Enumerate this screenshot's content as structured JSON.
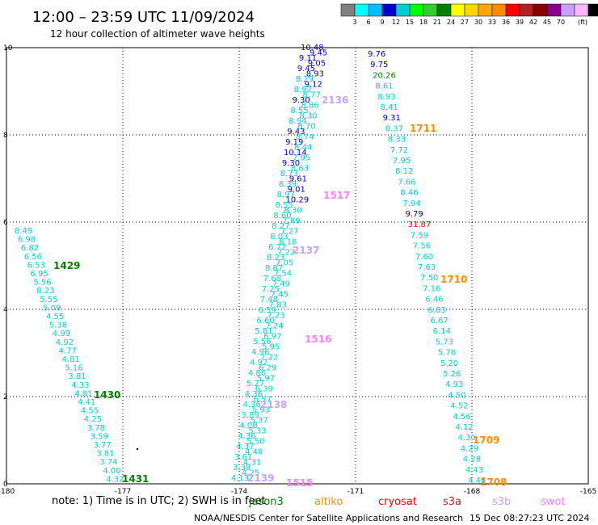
{
  "chart_data": {
    "type": "scatter",
    "title": "12:00 – 23:59 UTC 11/09/2024",
    "subtitle": "12 hour collection of altimeter wave heights",
    "x_ticks": [
      "-180",
      "-177",
      "-174",
      "-171",
      "-168",
      "-165"
    ],
    "y_ticks": [
      "0",
      "2",
      "4",
      "6",
      "8",
      "10"
    ],
    "xlim": [
      -180,
      -165
    ],
    "ylim": [
      0,
      10
    ],
    "grid": true,
    "colorbar": {
      "unit_label": "(ft)",
      "labels": [
        "3",
        "6",
        "9",
        "12",
        "15",
        "18",
        "21",
        "24",
        "27",
        "30",
        "33",
        "36",
        "39",
        "42",
        "45",
        "70"
      ],
      "colors": [
        "#808080",
        "#00ffff",
        "#00bfff",
        "#0000cd",
        "#00ced1",
        "#00ff00",
        "#32cd32",
        "#008000",
        "#ffff00",
        "#ffd700",
        "#ffa500",
        "#ff8c00",
        "#ff0000",
        "#b22222",
        "#8b0000",
        "#8b008b",
        "#c8a0ff",
        "#ffb6ff",
        "#000000"
      ]
    },
    "series": [
      {
        "color": "#00cfd8",
        "points": [
          {
            "x": -179.8,
            "y": 9.4,
            "label": "8.49"
          },
          {
            "x": -179.7,
            "y": 9.2,
            "label": "6.98"
          },
          {
            "x": -179.6,
            "y": 9.0,
            "label": "6.82"
          },
          {
            "x": -179.5,
            "y": 8.8,
            "label": "6.56"
          },
          {
            "x": -179.4,
            "y": 8.6,
            "label": "6.53"
          },
          {
            "x": -179.3,
            "y": 8.45,
            "label": "6.95"
          },
          {
            "x": -179.2,
            "y": 8.25,
            "label": "5.56"
          },
          {
            "x": -179.1,
            "y": 8.05,
            "label": "8.23"
          },
          {
            "x": -179.0,
            "y": 7.85,
            "label": "5.55"
          },
          {
            "x": -178.9,
            "y": 7.65,
            "label": "5.09"
          },
          {
            "x": -178.8,
            "y": 7.45,
            "label": "4.55"
          },
          {
            "x": -178.7,
            "y": 7.25,
            "label": "5.38"
          },
          {
            "x": -178.6,
            "y": 7.05,
            "label": "4.99"
          },
          {
            "x": -178.5,
            "y": 6.85,
            "label": "4.92"
          },
          {
            "x": -178.4,
            "y": 6.65,
            "label": "4.77"
          },
          {
            "x": -178.3,
            "y": 6.45,
            "label": "4.81"
          },
          {
            "x": -178.2,
            "y": 6.25,
            "label": "5.16"
          },
          {
            "x": -178.1,
            "y": 6.05,
            "label": "3.81"
          },
          {
            "x": -178.0,
            "y": 5.85,
            "label": "4.33"
          },
          {
            "x": -177.9,
            "y": 5.65,
            "label": "4.81"
          },
          {
            "x": -177.8,
            "y": 5.5,
            "label": "4.41"
          },
          {
            "x": -177.7,
            "y": 5.3,
            "label": "4.55"
          },
          {
            "x": -177.6,
            "y": 5.1,
            "label": "4.25"
          },
          {
            "x": -177.5,
            "y": 4.9,
            "label": "3.78"
          },
          {
            "x": -177.4,
            "y": 4.7,
            "label": "3.59"
          },
          {
            "x": -177.3,
            "y": 4.5,
            "label": "3.77"
          },
          {
            "x": -177.2,
            "y": 4.3,
            "label": "3.81"
          },
          {
            "x": -177.1,
            "y": 4.1,
            "label": "3.74"
          },
          {
            "x": -177.0,
            "y": 3.9,
            "label": "4.00"
          },
          {
            "x": -176.9,
            "y": 3.7,
            "label": "4.32"
          }
        ]
      }
    ],
    "annotations": [
      {
        "x": -177.3,
        "y": 8.5,
        "text": "1429",
        "color": "#008000"
      },
      {
        "x": -176.5,
        "y": 5.5,
        "text": "1430",
        "color": "#008000"
      },
      {
        "x": -176.0,
        "y": 3.7,
        "text": "1431",
        "color": "#008000"
      },
      {
        "x": -173.0,
        "y": 9.8,
        "text": "2136",
        "color": "#c8a0ff"
      },
      {
        "x": -173.0,
        "y": 9.4,
        "text": "1517",
        "color": "#ff80ff"
      },
      {
        "x": -173.3,
        "y": 8.9,
        "text": "2137",
        "color": "#c8a0ff"
      },
      {
        "x": -172.0,
        "y": 9.9,
        "text": "1711",
        "color": "#ff8c00"
      },
      {
        "x": -172.0,
        "y": 9.0,
        "text": "1710",
        "color": "#ff8c00"
      },
      {
        "x": -172.5,
        "y": 8.5,
        "text": "1516",
        "color": "#ff80ff"
      },
      {
        "x": -173.5,
        "y": 5.5,
        "text": "2138",
        "color": "#c8a0ff"
      },
      {
        "x": -172.2,
        "y": 5.0,
        "text": "1709",
        "color": "#ff8c00"
      },
      {
        "x": -172.2,
        "y": 3.7,
        "text": "1708",
        "color": "#ff8c00"
      },
      {
        "x": -173.2,
        "y": 3.7,
        "text": "1515",
        "color": "#ff80ff"
      },
      {
        "x": -173.8,
        "y": 3.7,
        "text": "2139",
        "color": "#c8a0ff"
      }
    ]
  },
  "col_a": [
    {
      "t": "10.48",
      "c": "#0000cd"
    },
    {
      "t": "9.45",
      "c": "#0000cd"
    },
    {
      "t": "9.11",
      "c": "#0000cd"
    },
    {
      "t": "9.05",
      "c": "#0000cd"
    },
    {
      "t": "9.45",
      "c": "#0000cd"
    },
    {
      "t": "8.93",
      "c": "#0000cd"
    },
    {
      "t": "8.29",
      "c": "#00cfd8"
    },
    {
      "t": "9.12",
      "c": "#0000cd"
    },
    {
      "t": "8.92",
      "c": "#00cfd8"
    },
    {
      "t": "8.77",
      "c": "#00cfd8"
    },
    {
      "t": "9.30",
      "c": "#0000cd"
    },
    {
      "t": "8.86",
      "c": "#00cfd8"
    },
    {
      "t": "8.55",
      "c": "#00cfd8"
    },
    {
      "t": "8.30",
      "c": "#00cfd8"
    },
    {
      "t": "8.94",
      "c": "#00cfd8"
    },
    {
      "t": "8.70",
      "c": "#00cfd8"
    },
    {
      "t": "9.43",
      "c": "#0000cd"
    },
    {
      "t": "8.74",
      "c": "#00cfd8"
    },
    {
      "t": "9.19",
      "c": "#0000cd"
    },
    {
      "t": "8.44",
      "c": "#00cfd8"
    },
    {
      "t": "10.14",
      "c": "#0000cd"
    },
    {
      "t": "7.95",
      "c": "#00cfd8"
    },
    {
      "t": "9.30",
      "c": "#0000cd"
    },
    {
      "t": "8.63",
      "c": "#00cfd8"
    },
    {
      "t": "8.73",
      "c": "#00cfd8"
    },
    {
      "t": "9.61",
      "c": "#0000cd"
    },
    {
      "t": "8.39",
      "c": "#00cfd8"
    },
    {
      "t": "9.01",
      "c": "#0000cd"
    },
    {
      "t": "8.97",
      "c": "#00cfd8"
    },
    {
      "t": "10.29",
      "c": "#0000cd"
    },
    {
      "t": "8.55",
      "c": "#00cfd8"
    },
    {
      "t": "8.30",
      "c": "#00cfd8"
    },
    {
      "t": "8.60",
      "c": "#00cfd8"
    },
    {
      "t": "7.89",
      "c": "#00cfd8"
    },
    {
      "t": "8.27",
      "c": "#00cfd8"
    },
    {
      "t": "7.27",
      "c": "#00cfd8"
    },
    {
      "t": "8.03",
      "c": "#00cfd8"
    },
    {
      "t": "8.18",
      "c": "#00cfd8"
    },
    {
      "t": "6.72",
      "c": "#00cfd8"
    },
    {
      "t": "7.22",
      "c": "#00cfd8"
    },
    {
      "t": "8.23",
      "c": "#00cfd8"
    },
    {
      "t": "7.05",
      "c": "#00cfd8"
    },
    {
      "t": "8.87",
      "c": "#00cfd8"
    },
    {
      "t": "7.54",
      "c": "#00cfd8"
    },
    {
      "t": "7.68",
      "c": "#00cfd8"
    },
    {
      "t": "7.49",
      "c": "#00cfd8"
    },
    {
      "t": "7.25",
      "c": "#00cfd8"
    },
    {
      "t": "7.45",
      "c": "#00cfd8"
    },
    {
      "t": "7.48",
      "c": "#00cfd8"
    },
    {
      "t": "7.83",
      "c": "#00cfd8"
    },
    {
      "t": "6.59",
      "c": "#00cfd8"
    },
    {
      "t": "7.23",
      "c": "#00cfd8"
    },
    {
      "t": "6.60",
      "c": "#00cfd8"
    },
    {
      "t": "7.24",
      "c": "#00cfd8"
    },
    {
      "t": "5.81",
      "c": "#00cfd8"
    },
    {
      "t": "6.97",
      "c": "#00cfd8"
    },
    {
      "t": "5.56",
      "c": "#00cfd8"
    },
    {
      "t": "5.95",
      "c": "#00cfd8"
    },
    {
      "t": "4.96",
      "c": "#00cfd8"
    },
    {
      "t": "7.22",
      "c": "#00cfd8"
    },
    {
      "t": "4.92",
      "c": "#00cfd8"
    },
    {
      "t": "6.29",
      "c": "#00cfd8"
    },
    {
      "t": "4.86",
      "c": "#00cfd8"
    },
    {
      "t": "5.97",
      "c": "#00cfd8"
    },
    {
      "t": "5.27",
      "c": "#00cfd8"
    },
    {
      "t": "6.39",
      "c": "#00cfd8"
    },
    {
      "t": "4.36",
      "c": "#00cfd8"
    },
    {
      "t": "6.57",
      "c": "#00cfd8"
    },
    {
      "t": "4.36",
      "c": "#00cfd8"
    },
    {
      "t": "5.93",
      "c": "#00cfd8"
    },
    {
      "t": "3.89",
      "c": "#00cfd8"
    },
    {
      "t": "5.37",
      "c": "#00cfd8"
    },
    {
      "t": "4.08",
      "c": "#00cfd8"
    },
    {
      "t": "5.33",
      "c": "#00cfd8"
    },
    {
      "t": "4.36",
      "c": "#00cfd8"
    },
    {
      "t": "5.50",
      "c": "#00cfd8"
    },
    {
      "t": "4.37",
      "c": "#00cfd8"
    },
    {
      "t": "4.48",
      "c": "#00cfd8"
    },
    {
      "t": "3.61",
      "c": "#00cfd8"
    },
    {
      "t": "4.31",
      "c": "#00cfd8"
    },
    {
      "t": "3.38",
      "c": "#00cfd8"
    },
    {
      "t": "4.25",
      "c": "#00cfd8"
    },
    {
      "t": "4.13",
      "c": "#00cfd8"
    }
  ],
  "col_b": [
    {
      "t": "9.76",
      "c": "#0000cd"
    },
    {
      "t": "9.75",
      "c": "#0000cd"
    },
    {
      "t": "20.26",
      "c": "#008000"
    },
    {
      "t": "8.61",
      "c": "#00cfd8"
    },
    {
      "t": "8.93",
      "c": "#00cfd8"
    },
    {
      "t": "8.41",
      "c": "#00cfd8"
    },
    {
      "t": "9.31",
      "c": "#0000cd"
    },
    {
      "t": "8.37",
      "c": "#00cfd8"
    },
    {
      "t": "8.33",
      "c": "#00cfd8"
    },
    {
      "t": "7.72",
      "c": "#00cfd8"
    },
    {
      "t": "7.95",
      "c": "#00cfd8"
    },
    {
      "t": "8.12",
      "c": "#00cfd8"
    },
    {
      "t": "7.66",
      "c": "#00cfd8"
    },
    {
      "t": "8.46",
      "c": "#00cfd8"
    },
    {
      "t": "7.94",
      "c": "#00cfd8"
    },
    {
      "t": "9.79",
      "c": "#0000cd"
    },
    {
      "t": "31.87",
      "c": "#ff0000"
    },
    {
      "t": "7.59",
      "c": "#00cfd8"
    },
    {
      "t": "7.56",
      "c": "#00cfd8"
    },
    {
      "t": "7.60",
      "c": "#00cfd8"
    },
    {
      "t": "7.63",
      "c": "#00cfd8"
    },
    {
      "t": "7.50",
      "c": "#00cfd8"
    },
    {
      "t": "7.16",
      "c": "#00cfd8"
    },
    {
      "t": "6.46",
      "c": "#00cfd8"
    },
    {
      "t": "6.63",
      "c": "#00cfd8"
    },
    {
      "t": "6.67",
      "c": "#00cfd8"
    },
    {
      "t": "6.14",
      "c": "#00cfd8"
    },
    {
      "t": "5.73",
      "c": "#00cfd8"
    },
    {
      "t": "5.76",
      "c": "#00cfd8"
    },
    {
      "t": "5.20",
      "c": "#00cfd8"
    },
    {
      "t": "5.26",
      "c": "#00cfd8"
    },
    {
      "t": "4.93",
      "c": "#00cfd8"
    },
    {
      "t": "4.50",
      "c": "#00cfd8"
    },
    {
      "t": "4.52",
      "c": "#00cfd8"
    },
    {
      "t": "4.56",
      "c": "#00cfd8"
    },
    {
      "t": "4.12",
      "c": "#00cfd8"
    },
    {
      "t": "4.30",
      "c": "#00cfd8"
    },
    {
      "t": "4.29",
      "c": "#00cfd8"
    },
    {
      "t": "4.28",
      "c": "#00cfd8"
    },
    {
      "t": "4.43",
      "c": "#00cfd8"
    },
    {
      "t": "4.48",
      "c": "#00cfd8"
    }
  ],
  "footer": {
    "note": "note:  1) Time is in UTC;  2) SWH is in feet",
    "satellites": [
      {
        "name": "jason3",
        "color": "#008000"
      },
      {
        "name": "altiko",
        "color": "#ff8c00"
      },
      {
        "name": "cryosat",
        "color": "#ff0000"
      },
      {
        "name": "s3a",
        "color": "#b22222"
      },
      {
        "name": "s3b",
        "color": "#c8a0ff"
      },
      {
        "name": "swot",
        "color": "#ff80ff"
      }
    ],
    "credit": "NOAA/NESDIS Center for Satellite Applications and Research",
    "timestamp": "15 Dec 08:27:23 UTC 2024"
  }
}
